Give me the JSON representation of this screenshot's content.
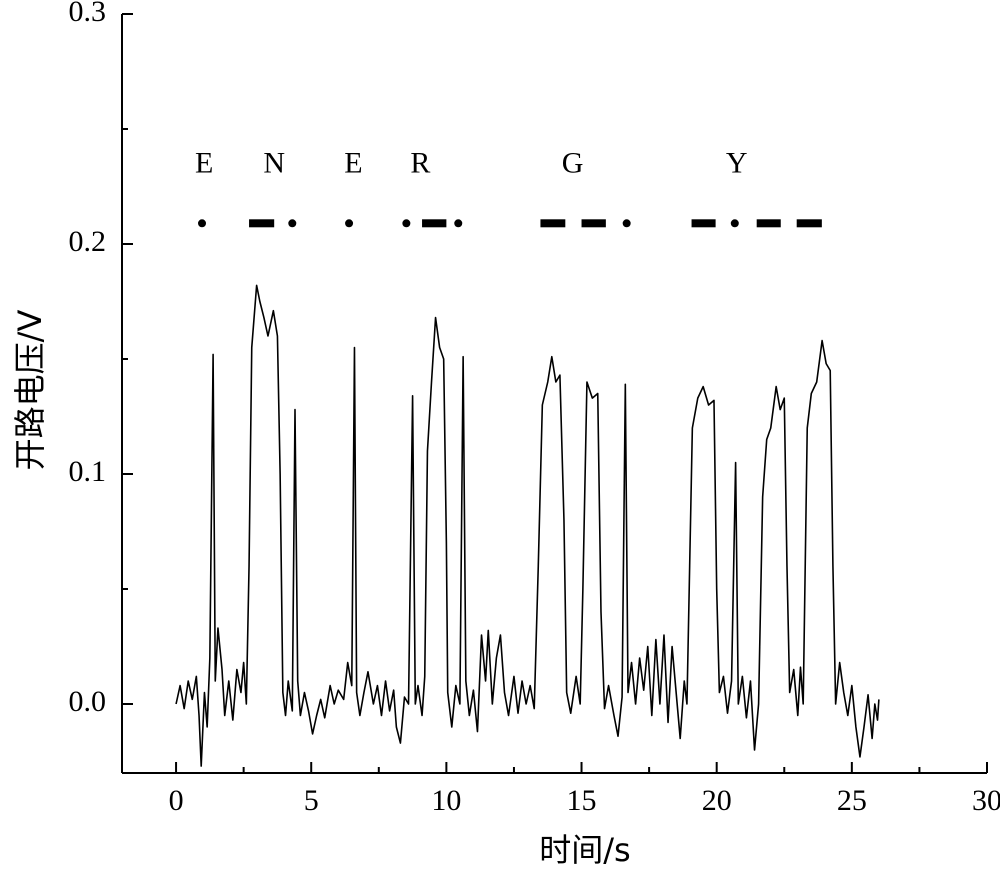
{
  "chart_data": {
    "type": "line",
    "xlabel": "时间/s",
    "ylabel": "开路电压/V",
    "color": "#000000",
    "xlim": [
      -2,
      30
    ],
    "ylim": [
      -0.03,
      0.3
    ],
    "xticks": [
      0,
      5,
      10,
      15,
      20,
      25,
      30
    ],
    "yticks": [
      {
        "value": 0,
        "label": "0.0"
      },
      0.1,
      0.2,
      0.3
    ],
    "xminor": [
      2.5,
      7.5,
      12.5,
      17.5,
      22.5,
      27.5
    ],
    "yminor": [
      0.05,
      0.15,
      0.25
    ],
    "annotations": [
      {
        "text": "E",
        "x": 1.04,
        "y": 0.234
      },
      {
        "text": "N",
        "x": 3.63,
        "y": 0.234
      },
      {
        "text": "E",
        "x": 6.56,
        "y": 0.234
      },
      {
        "text": "R",
        "x": 9.04,
        "y": 0.234
      },
      {
        "text": "G",
        "x": 14.67,
        "y": 0.234
      },
      {
        "text": "Y",
        "x": 20.74,
        "y": 0.234
      }
    ],
    "morse": {
      "y": 0.209,
      "symbols": [
        {
          "x": 0.96
        },
        {
          "x0": 2.7,
          "x1": 3.63
        },
        {
          "x": 4.3
        },
        {
          "x": 6.4
        },
        {
          "x": 8.52
        },
        {
          "x0": 9.1,
          "x1": 10.0
        },
        {
          "x": 10.44
        },
        {
          "x0": 13.48,
          "x1": 14.4
        },
        {
          "x0": 15.0,
          "x1": 15.9
        },
        {
          "x": 16.67
        },
        {
          "x0": 19.07,
          "x1": 19.96
        },
        {
          "x": 20.67
        },
        {
          "x0": 21.48,
          "x1": 22.37
        },
        {
          "x0": 22.96,
          "x1": 23.89
        }
      ]
    },
    "x": [
      0.0,
      0.15,
      0.3,
      0.45,
      0.6,
      0.75,
      0.85,
      0.93,
      1.05,
      1.15,
      1.25,
      1.37,
      1.45,
      1.55,
      1.7,
      1.8,
      1.95,
      2.1,
      2.25,
      2.4,
      2.5,
      2.6,
      2.7,
      2.8,
      2.98,
      3.1,
      3.25,
      3.4,
      3.6,
      3.75,
      3.85,
      3.95,
      4.05,
      4.15,
      4.3,
      4.4,
      4.5,
      4.6,
      4.75,
      4.9,
      5.05,
      5.2,
      5.35,
      5.5,
      5.7,
      5.85,
      6.0,
      6.2,
      6.35,
      6.5,
      6.6,
      6.68,
      6.8,
      6.95,
      7.1,
      7.3,
      7.45,
      7.6,
      7.75,
      7.9,
      8.05,
      8.15,
      8.3,
      8.45,
      8.6,
      8.75,
      8.85,
      8.95,
      9.1,
      9.2,
      9.3,
      9.45,
      9.6,
      9.75,
      9.9,
      10.0,
      10.05,
      10.2,
      10.35,
      10.5,
      10.62,
      10.72,
      10.85,
      11.0,
      11.15,
      11.3,
      11.45,
      11.55,
      11.7,
      11.85,
      12.0,
      12.15,
      12.3,
      12.5,
      12.65,
      12.8,
      12.95,
      13.1,
      13.25,
      13.4,
      13.55,
      13.75,
      13.9,
      14.05,
      14.2,
      14.35,
      14.45,
      14.6,
      14.8,
      14.95,
      15.05,
      15.2,
      15.4,
      15.6,
      15.72,
      15.85,
      16.0,
      16.2,
      16.35,
      16.5,
      16.62,
      16.72,
      16.85,
      17.0,
      17.15,
      17.3,
      17.45,
      17.6,
      17.75,
      17.9,
      18.05,
      18.2,
      18.35,
      18.5,
      18.65,
      18.8,
      18.9,
      19.0,
      19.1,
      19.3,
      19.5,
      19.7,
      19.9,
      20.0,
      20.1,
      20.25,
      20.4,
      20.55,
      20.7,
      20.8,
      20.95,
      21.1,
      21.25,
      21.4,
      21.55,
      21.7,
      21.85,
      22.0,
      22.2,
      22.35,
      22.5,
      22.6,
      22.7,
      22.85,
      23.0,
      23.1,
      23.2,
      23.35,
      23.5,
      23.7,
      23.9,
      24.05,
      24.2,
      24.3,
      24.4,
      24.55,
      24.7,
      24.85,
      25.0,
      25.15,
      25.3,
      25.45,
      25.6,
      25.75,
      25.85,
      25.95,
      26.0
    ],
    "values": [
      0.0,
      0.008,
      -0.002,
      0.01,
      0.002,
      0.012,
      -0.005,
      -0.027,
      0.005,
      -0.01,
      0.02,
      0.152,
      0.01,
      0.033,
      0.015,
      -0.005,
      0.01,
      -0.007,
      0.015,
      0.005,
      0.018,
      0.0,
      0.06,
      0.155,
      0.182,
      0.175,
      0.168,
      0.16,
      0.171,
      0.16,
      0.1,
      0.005,
      -0.005,
      0.01,
      -0.003,
      0.128,
      0.01,
      -0.005,
      0.005,
      -0.003,
      -0.013,
      -0.005,
      0.002,
      -0.006,
      0.008,
      0.0,
      0.006,
      0.002,
      0.018,
      0.008,
      0.155,
      0.005,
      -0.005,
      0.005,
      0.014,
      0.0,
      0.008,
      -0.005,
      0.01,
      -0.003,
      0.006,
      -0.01,
      -0.017,
      0.003,
      0.0,
      0.134,
      0.0,
      0.008,
      -0.005,
      0.012,
      0.11,
      0.14,
      0.168,
      0.155,
      0.15,
      0.07,
      0.005,
      -0.01,
      0.008,
      0.0,
      0.151,
      0.01,
      -0.005,
      0.006,
      -0.012,
      0.03,
      0.01,
      0.032,
      0.0,
      0.02,
      0.03,
      0.005,
      -0.005,
      0.012,
      -0.004,
      0.01,
      0.0,
      0.008,
      -0.002,
      0.06,
      0.13,
      0.14,
      0.151,
      0.14,
      0.143,
      0.08,
      0.005,
      -0.004,
      0.012,
      0.0,
      0.05,
      0.14,
      0.133,
      0.135,
      0.04,
      -0.002,
      0.008,
      -0.005,
      -0.014,
      0.003,
      0.139,
      0.005,
      0.018,
      0.0,
      0.02,
      0.006,
      0.025,
      -0.005,
      0.028,
      0.0,
      0.03,
      -0.008,
      0.025,
      0.005,
      -0.015,
      0.01,
      0.0,
      0.06,
      0.12,
      0.133,
      0.138,
      0.13,
      0.132,
      0.05,
      0.005,
      0.012,
      -0.004,
      0.01,
      0.105,
      0.0,
      0.012,
      -0.006,
      0.01,
      -0.02,
      0.0,
      0.09,
      0.115,
      0.12,
      0.138,
      0.128,
      0.133,
      0.06,
      0.005,
      0.015,
      -0.005,
      0.016,
      0.0,
      0.12,
      0.135,
      0.14,
      0.158,
      0.148,
      0.145,
      0.06,
      0.0,
      0.018,
      0.005,
      -0.005,
      0.008,
      -0.01,
      -0.023,
      -0.01,
      0.004,
      -0.015,
      0.0,
      -0.007,
      0.002
    ]
  }
}
